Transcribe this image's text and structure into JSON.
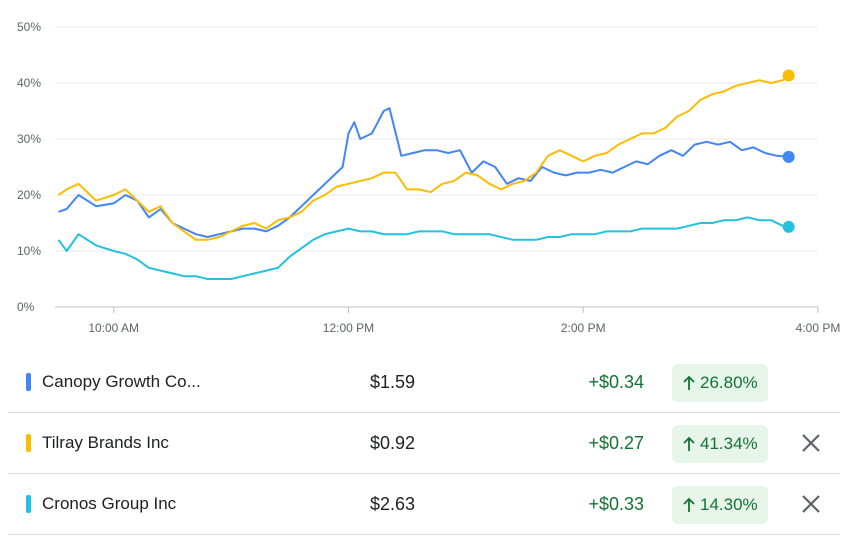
{
  "chart_data": {
    "type": "line",
    "xlim": [
      9.5,
      16.0
    ],
    "ylim": [
      0,
      50
    ],
    "x_ticks": [
      {
        "value": 10,
        "label": "10:00 AM"
      },
      {
        "value": 12,
        "label": "12:00 PM"
      },
      {
        "value": 14,
        "label": "2:00 PM"
      },
      {
        "value": 16,
        "label": "4:00 PM"
      }
    ],
    "y_ticks": [
      {
        "value": 0,
        "label": "0%"
      },
      {
        "value": 10,
        "label": "10%"
      },
      {
        "value": 20,
        "label": "20%"
      },
      {
        "value": 30,
        "label": "30%"
      },
      {
        "value": 40,
        "label": "40%"
      },
      {
        "value": 50,
        "label": "50%"
      }
    ],
    "grid": true,
    "series": [
      {
        "name": "Canopy Growth Co...",
        "color": "#4285f4",
        "x": [
          9.53,
          9.6,
          9.7,
          9.85,
          10.0,
          10.1,
          10.2,
          10.3,
          10.4,
          10.5,
          10.6,
          10.7,
          10.8,
          10.9,
          11.0,
          11.1,
          11.2,
          11.3,
          11.4,
          11.5,
          11.6,
          11.7,
          11.8,
          11.9,
          11.95,
          12.0,
          12.05,
          12.1,
          12.2,
          12.3,
          12.35,
          12.45,
          12.55,
          12.65,
          12.75,
          12.85,
          12.95,
          13.05,
          13.15,
          13.25,
          13.35,
          13.45,
          13.55,
          13.65,
          13.75,
          13.85,
          13.95,
          14.05,
          14.15,
          14.25,
          14.35,
          14.45,
          14.55,
          14.65,
          14.75,
          14.85,
          14.95,
          15.05,
          15.15,
          15.25,
          15.35,
          15.45,
          15.55,
          15.65,
          15.75
        ],
        "values": [
          17,
          17.5,
          20,
          18,
          18.5,
          20,
          19,
          16,
          17.5,
          15,
          14,
          13,
          12.5,
          13,
          13.5,
          14,
          14,
          13.5,
          14.5,
          16,
          18,
          20,
          22,
          24,
          25,
          31,
          33,
          30,
          31,
          35,
          35.5,
          27,
          27.5,
          28,
          28,
          27.5,
          28,
          24,
          26,
          25,
          22,
          23,
          22.5,
          25,
          24,
          23.5,
          24,
          24,
          24.5,
          24,
          25,
          26,
          25.5,
          27,
          28,
          27,
          29,
          29.5,
          29,
          29.5,
          28,
          28.5,
          27.5,
          27,
          26.8
        ]
      },
      {
        "name": "Tilray Brands Inc",
        "color": "#fbbc04",
        "x": [
          9.53,
          9.6,
          9.7,
          9.85,
          10.0,
          10.1,
          10.2,
          10.3,
          10.4,
          10.5,
          10.6,
          10.7,
          10.8,
          10.9,
          11.0,
          11.1,
          11.2,
          11.3,
          11.4,
          11.5,
          11.6,
          11.7,
          11.8,
          11.9,
          12.0,
          12.1,
          12.2,
          12.3,
          12.4,
          12.5,
          12.6,
          12.7,
          12.8,
          12.9,
          13.0,
          13.1,
          13.2,
          13.3,
          13.4,
          13.5,
          13.6,
          13.7,
          13.8,
          13.9,
          14.0,
          14.1,
          14.2,
          14.3,
          14.4,
          14.5,
          14.6,
          14.7,
          14.8,
          14.9,
          15.0,
          15.1,
          15.2,
          15.3,
          15.4,
          15.5,
          15.6,
          15.7,
          15.75
        ],
        "values": [
          20,
          21,
          22,
          19,
          20,
          21,
          19,
          17,
          18,
          15,
          13.5,
          12,
          12,
          12.5,
          13.5,
          14.5,
          15,
          14,
          15.5,
          16,
          17,
          19,
          20,
          21.5,
          22,
          22.5,
          23,
          24,
          24,
          21,
          21,
          20.5,
          22,
          22.5,
          24,
          23.5,
          22,
          21,
          22,
          22.5,
          24,
          27,
          28,
          27,
          26,
          27,
          27.5,
          29,
          30,
          31,
          31,
          32,
          34,
          35,
          37,
          38,
          38.5,
          39.5,
          40,
          40.5,
          40,
          40.5,
          41.34
        ]
      },
      {
        "name": "Cronos Group Inc",
        "color": "#24c1e0",
        "x": [
          9.53,
          9.6,
          9.7,
          9.85,
          10.0,
          10.1,
          10.2,
          10.3,
          10.4,
          10.5,
          10.6,
          10.7,
          10.8,
          10.9,
          11.0,
          11.1,
          11.2,
          11.3,
          11.4,
          11.5,
          11.6,
          11.7,
          11.8,
          11.9,
          12.0,
          12.1,
          12.2,
          12.3,
          12.4,
          12.5,
          12.6,
          12.7,
          12.8,
          12.9,
          13.0,
          13.1,
          13.2,
          13.3,
          13.4,
          13.5,
          13.6,
          13.7,
          13.8,
          13.9,
          14.0,
          14.1,
          14.2,
          14.3,
          14.4,
          14.5,
          14.6,
          14.7,
          14.8,
          14.9,
          15.0,
          15.1,
          15.2,
          15.3,
          15.4,
          15.5,
          15.6,
          15.7,
          15.75
        ],
        "values": [
          12,
          10,
          13,
          11,
          10,
          9.5,
          8.5,
          7,
          6.5,
          6,
          5.5,
          5.5,
          5,
          5,
          5,
          5.5,
          6,
          6.5,
          7,
          9,
          10.5,
          12,
          13,
          13.5,
          14,
          13.5,
          13.5,
          13,
          13,
          13,
          13.5,
          13.5,
          13.5,
          13,
          13,
          13,
          13,
          12.5,
          12,
          12,
          12,
          12.5,
          12.5,
          13,
          13,
          13,
          13.5,
          13.5,
          13.5,
          14,
          14,
          14,
          14,
          14.5,
          15,
          15,
          15.5,
          15.5,
          16,
          15.5,
          15.5,
          14.5,
          14.3
        ]
      }
    ]
  },
  "rows": [
    {
      "name": "Canopy Growth Co...",
      "price": "$1.59",
      "change": "+$0.34",
      "pct": "26.80%",
      "color": "#4285f4",
      "removable": false
    },
    {
      "name": "Tilray Brands Inc",
      "price": "$0.92",
      "change": "+$0.27",
      "pct": "41.34%",
      "color": "#fbbc04",
      "removable": true
    },
    {
      "name": "Cronos Group Inc",
      "price": "$2.63",
      "change": "+$0.33",
      "pct": "14.30%",
      "color": "#24c1e0",
      "removable": true
    }
  ],
  "icons": {
    "trend": "arrow-up-icon",
    "remove": "close-icon"
  },
  "colors": {
    "positive": "#137333",
    "positive_bg": "#e6f4ea",
    "grid": "#e8eaed"
  }
}
